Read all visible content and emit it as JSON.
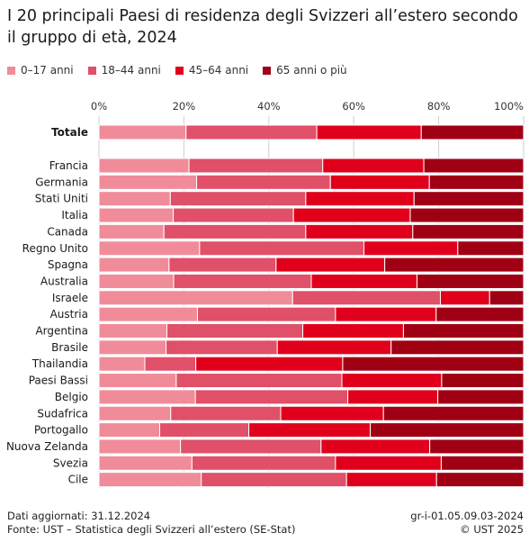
{
  "title": "I 20 principali Paesi di residenza degli Svizzeri all’estero secondo il gruppo di età, 2024",
  "footer": {
    "updated": "Dati aggiornati: 31.12.2024",
    "source": "Fonte: UST – Statistica degli Svizzeri all’estero (SE-Stat)",
    "code": "gr-i-01.05.09.03-2024",
    "copyright": "© UST 2025"
  },
  "colors": [
    "#f08c9a",
    "#e05068",
    "#e0001c",
    "#a00014"
  ],
  "chart_data": {
    "type": "bar",
    "orientation": "horizontal",
    "stacked": true,
    "percent": true,
    "xlim": [
      0,
      100
    ],
    "x_ticks": [
      "0%",
      "20%",
      "40%",
      "60%",
      "80%",
      "100%"
    ],
    "grid": true,
    "legend_position": "top-left",
    "categories": [
      "Totale",
      "Francia",
      "Germania",
      "Stati Uniti",
      "Italia",
      "Canada",
      "Regno Unito",
      "Spagna",
      "Australia",
      "Israele",
      "Austria",
      "Argentina",
      "Brasile",
      "Thailandia",
      "Paesi Bassi",
      "Belgio",
      "Sudafrica",
      "Portogallo",
      "Nuova Zelanda",
      "Svezia",
      "Cile"
    ],
    "series": [
      {
        "name": "0–17 anni",
        "values": [
          20.5,
          21.2,
          23.0,
          16.8,
          17.5,
          15.3,
          23.7,
          16.5,
          17.6,
          45.6,
          23.2,
          16.0,
          15.8,
          10.8,
          18.2,
          22.7,
          16.9,
          14.3,
          19.2,
          21.9,
          24.1
        ]
      },
      {
        "name": "18–44 anni",
        "values": [
          30.8,
          31.5,
          31.5,
          31.9,
          28.3,
          33.4,
          38.7,
          25.2,
          32.4,
          34.8,
          32.5,
          32.0,
          26.2,
          12.0,
          39.0,
          35.9,
          25.9,
          21.0,
          33.1,
          33.8,
          34.2
        ]
      },
      {
        "name": "45–64 anni",
        "values": [
          24.6,
          23.8,
          23.3,
          25.5,
          27.5,
          25.2,
          22.1,
          25.6,
          24.9,
          11.6,
          23.7,
          23.7,
          26.8,
          34.6,
          23.5,
          21.2,
          24.2,
          28.6,
          25.6,
          24.9,
          21.2
        ]
      },
      {
        "name": "65 anni o più",
        "values": [
          24.1,
          23.5,
          22.2,
          25.8,
          26.7,
          26.1,
          15.5,
          32.7,
          25.1,
          8.0,
          20.6,
          28.3,
          31.2,
          42.6,
          19.3,
          20.2,
          33.0,
          36.1,
          22.1,
          19.4,
          20.5
        ]
      }
    ]
  }
}
